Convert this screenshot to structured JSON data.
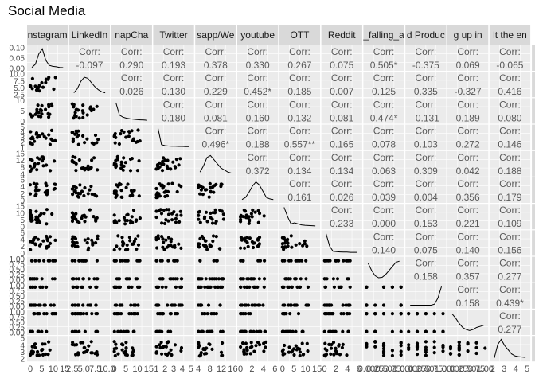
{
  "title": "Social Media",
  "chart_data": {
    "type": "scatter-matrix",
    "title": "Social Media",
    "variables": [
      "Instagram",
      "LinkedIn",
      "SnapChat",
      "Twitter",
      "Whatsapp/Wechat",
      "youtube",
      "OTT",
      "Reddit",
      "Trouble_falling_asleep",
      "Productive",
      "Tired_waking_up",
      "Felt_the_end"
    ],
    "strip_labels_top": [
      "nstagram",
      "LinkedIn",
      "napCha",
      "Twitter",
      "sapp/We",
      "youtube",
      "OTT",
      "Reddit",
      "_falling_a",
      "d Produc",
      "g up in",
      "lt the en"
    ],
    "strip_labels_right": [
      "stagra",
      "nked",
      "apC",
      "witte",
      "app/",
      "outu",
      "OTT",
      "Reddi",
      "fallin",
      "Produ",
      "ng up",
      "the e"
    ],
    "x_tick_labels": [
      [
        "0",
        "5",
        "10",
        "15"
      ],
      [
        "2.5",
        "5.0",
        "7.5",
        "10.0"
      ],
      [
        "0",
        "5",
        "10",
        "15"
      ],
      [
        "1",
        "2",
        "3",
        "4",
        "5"
      ],
      [
        "4",
        "8",
        "12",
        "16"
      ],
      [
        "0",
        "2",
        "4",
        "6"
      ],
      [
        "0",
        "5",
        "10",
        "15"
      ],
      [
        "0",
        "2",
        "4",
        "6"
      ],
      [
        "0.00",
        "0.25",
        "0.50",
        "0.75",
        "1.00"
      ],
      [
        "0.00",
        "0.25",
        "0.50",
        "0.75",
        "1.00"
      ],
      [
        "0.00",
        "0.25",
        "0.50",
        "0.75",
        "1.00"
      ],
      [
        "2",
        "3",
        "4",
        "5"
      ]
    ],
    "y_tick_labels": [
      [
        "0.00",
        "0.05",
        "0.10"
      ],
      [
        "2.5",
        "5.0",
        "7.5",
        "10.0"
      ],
      [
        "0",
        "5",
        "10"
      ],
      [
        "1",
        "2",
        "3",
        "4",
        "5"
      ],
      [
        "4",
        "8",
        "12",
        "16"
      ],
      [
        "0",
        "2",
        "4",
        "6"
      ],
      [
        "0",
        "5",
        "10",
        "15"
      ],
      [
        "0",
        "2",
        "4",
        "6"
      ],
      [
        "0.00",
        "0.25",
        "0.50",
        "0.75",
        "1.00"
      ],
      [
        "0.00",
        "0.25",
        "0.50",
        "0.75",
        "1.00"
      ],
      [
        "0.00",
        "0.25",
        "0.50",
        "0.75",
        "1.00"
      ],
      [
        "2",
        "3",
        "4",
        "5"
      ]
    ],
    "corr_label": "Corr:",
    "correlations": {
      "0-1": "-0.097",
      "0-2": "0.290",
      "0-3": "0.193",
      "0-4": "0.378",
      "0-5": "0.330",
      "0-6": "0.267",
      "0-7": "0.075",
      "0-8": "0.505*",
      "0-9": "-0.375",
      "0-10": "0.069",
      "0-11": "-0.065",
      "1-2": "0.026",
      "1-3": "0.130",
      "1-4": "0.229",
      "1-5": "0.452*",
      "1-6": "0.185",
      "1-7": "0.007",
      "1-8": "0.125",
      "1-9": "0.335",
      "1-10": "-0.327",
      "1-11": "0.416",
      "2-3": "0.180",
      "2-4": "0.081",
      "2-5": "0.160",
      "2-6": "0.132",
      "2-7": "0.081",
      "2-8": "0.474*",
      "2-9": "-0.131",
      "2-10": "0.189",
      "2-11": "0.080",
      "3-4": "0.496*",
      "3-5": "0.188",
      "3-6": "0.557**",
      "3-7": "0.165",
      "3-8": "0.078",
      "3-9": "0.103",
      "3-10": "0.272",
      "3-11": "0.146",
      "4-5": "0.372",
      "4-6": "0.134",
      "4-7": "0.134",
      "4-8": "0.063",
      "4-9": "0.309",
      "4-10": "0.042",
      "4-11": "0.188",
      "5-6": "0.161",
      "5-7": "0.026",
      "5-8": "0.039",
      "5-9": "0.004",
      "5-10": "0.356",
      "5-11": "0.179",
      "6-7": "0.233",
      "6-8": "0.000",
      "6-9": "0.153",
      "6-10": "0.221",
      "6-11": "0.109",
      "7-8": "0.140",
      "7-9": "0.075",
      "7-10": "0.140",
      "7-11": "0.156",
      "8-9": "0.158",
      "8-10": "0.357",
      "8-11": "0.277",
      "9-10": "0.158",
      "9-11": "0.439*",
      "10-11": "0.277"
    }
  }
}
